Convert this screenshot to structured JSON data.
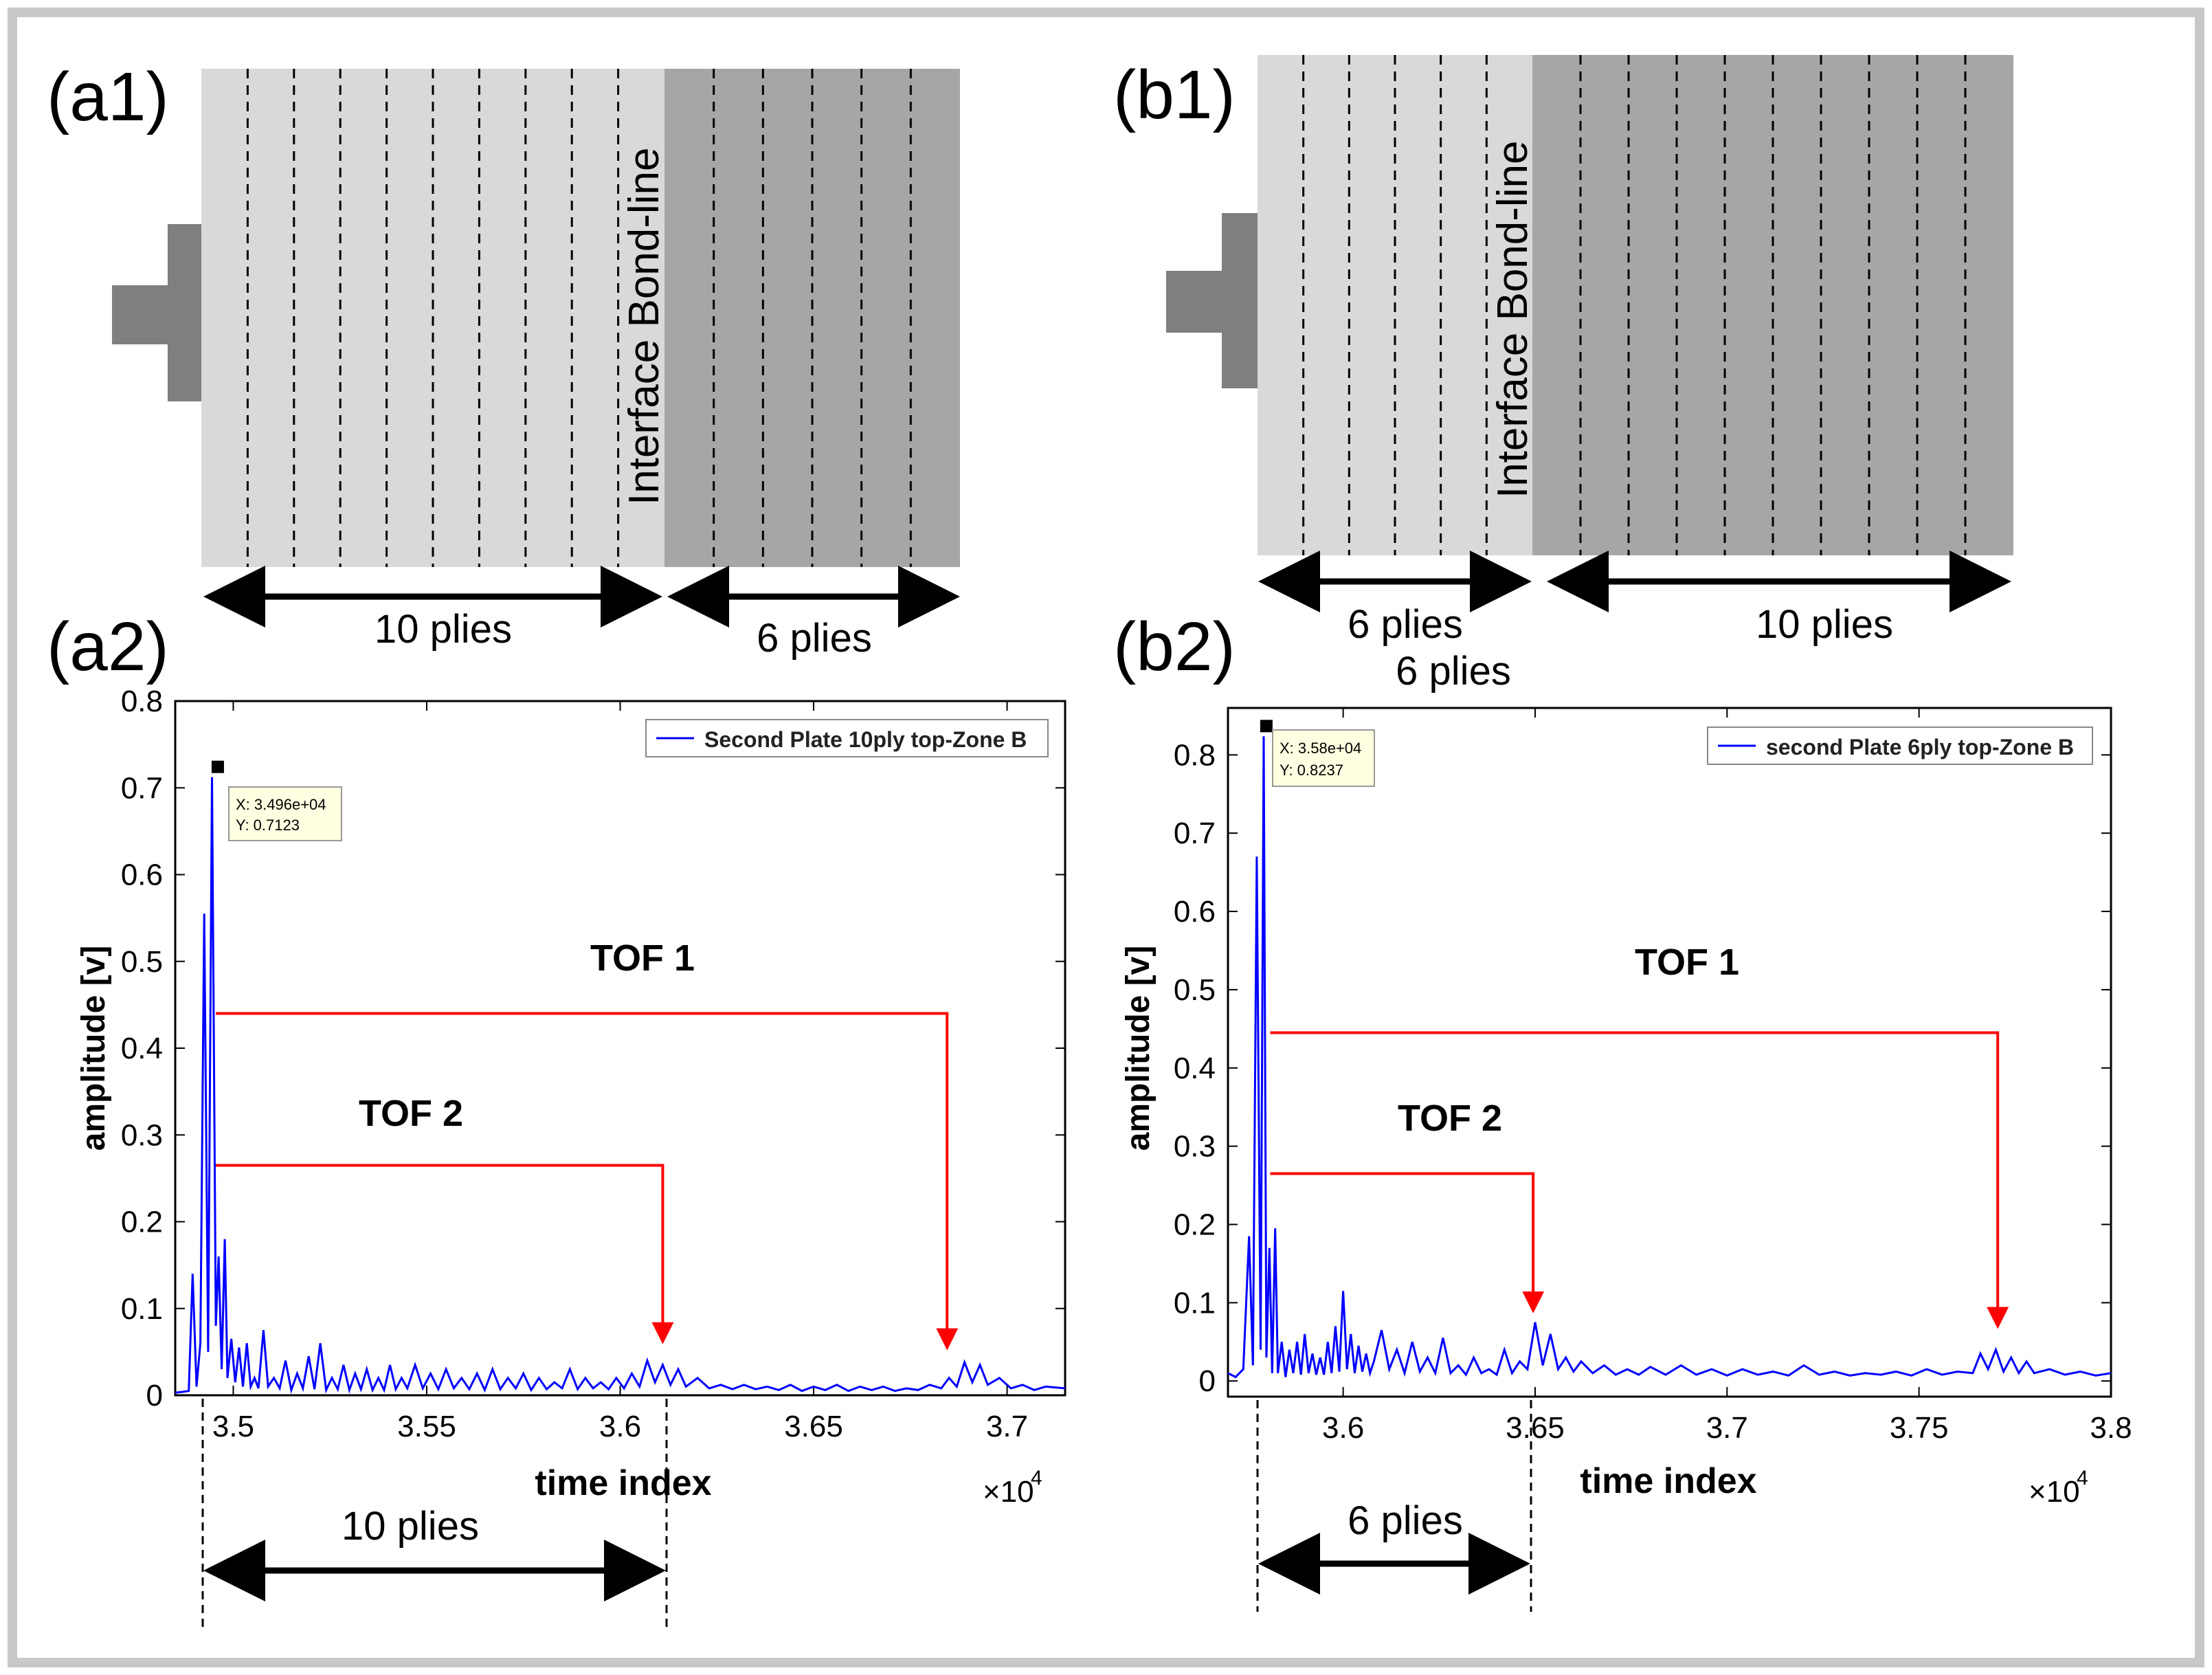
{
  "colors": {
    "frame": "#c8c8c8",
    "light_ply": "#d9d9d9",
    "dark_ply": "#a6a6a6",
    "transducer": "#7f7f7f",
    "signal": "#0000ff",
    "arrow_red": "#ff0000",
    "datatip_bg": "#ffffe1"
  },
  "panels": {
    "a1": {
      "label": "(a1)",
      "bond_line_label": "Interface Bond-line",
      "left_span_label": "10 plies",
      "right_span_label": "6 plies",
      "left_plies": 10,
      "right_plies": 6
    },
    "b1": {
      "label": "(b1)",
      "bond_line_label": "Interface Bond-line",
      "left_span_label": "6 plies",
      "left_span_label_2": "6 plies",
      "right_span_label": "10 plies",
      "left_plies": 6,
      "right_plies": 10
    },
    "a2": {
      "label": "(a2)",
      "bottom_span_label": "10 plies",
      "tof1_label": "TOF 1",
      "tof2_label": "TOF 2",
      "datatip_x": "X: 3.496e+04",
      "datatip_y": "Y: 0.7123",
      "exponent_label": "×10",
      "exponent_power": "4"
    },
    "b2": {
      "label": "(b2)",
      "bottom_span_label": "6 plies",
      "tof1_label": "TOF 1",
      "tof2_label": "TOF 2",
      "datatip_x": "X: 3.58e+04",
      "datatip_y": "Y: 0.8237",
      "exponent_label": "×10",
      "exponent_power": "4"
    }
  },
  "chart_data": [
    {
      "id": "a2",
      "type": "line",
      "title": "",
      "xlabel": "time index",
      "ylabel": "amplitude [v]",
      "xlim": [
        3.485,
        3.715
      ],
      "ylim": [
        0,
        0.8
      ],
      "x_scale_note": "×10^4",
      "xticks": [
        3.5,
        3.55,
        3.6,
        3.65,
        3.7
      ],
      "xtick_labels": [
        "3.5",
        "3.55",
        "3.6",
        "3.65",
        "3.7"
      ],
      "yticks": [
        0,
        0.1,
        0.2,
        0.3,
        0.4,
        0.5,
        0.6,
        0.7,
        0.8
      ],
      "ytick_labels": [
        "0",
        "0.1",
        "0.2",
        "0.3",
        "0.4",
        "0.5",
        "0.6",
        "0.7",
        "0.8"
      ],
      "legend": "Second Plate 10ply  top-Zone B",
      "legend_position": "top-right",
      "datatip": {
        "x": 3.496,
        "y": 0.7123
      },
      "series": [
        {
          "name": "Second Plate 10ply  top-Zone B",
          "x": [
            3.485,
            3.487,
            3.4885,
            3.4895,
            3.4905,
            3.4915,
            3.4925,
            3.4935,
            3.4945,
            3.4955,
            3.4962,
            3.497,
            3.4978,
            3.4985,
            3.4995,
            3.5005,
            3.5015,
            3.5025,
            3.5035,
            3.5045,
            3.5055,
            3.5065,
            3.5078,
            3.509,
            3.5105,
            3.512,
            3.5135,
            3.515,
            3.5165,
            3.518,
            3.5195,
            3.521,
            3.5225,
            3.524,
            3.5255,
            3.527,
            3.5285,
            3.53,
            3.5315,
            3.533,
            3.5345,
            3.536,
            3.5375,
            3.539,
            3.5405,
            3.542,
            3.5435,
            3.545,
            3.547,
            3.549,
            3.551,
            3.553,
            3.555,
            3.557,
            3.559,
            3.561,
            3.563,
            3.565,
            3.567,
            3.569,
            3.571,
            3.573,
            3.575,
            3.577,
            3.579,
            3.581,
            3.583,
            3.585,
            3.587,
            3.589,
            3.591,
            3.593,
            3.595,
            3.597,
            3.599,
            3.601,
            3.603,
            3.605,
            3.607,
            3.609,
            3.611,
            3.613,
            3.615,
            3.617,
            3.62,
            3.623,
            3.626,
            3.629,
            3.632,
            3.635,
            3.638,
            3.641,
            3.644,
            3.647,
            3.65,
            3.653,
            3.656,
            3.659,
            3.662,
            3.665,
            3.668,
            3.671,
            3.674,
            3.677,
            3.68,
            3.683,
            3.685,
            3.687,
            3.689,
            3.691,
            3.693,
            3.695,
            3.698,
            3.701,
            3.704,
            3.707,
            3.71,
            3.715
          ],
          "y": [
            0.003,
            0.004,
            0.005,
            0.14,
            0.01,
            0.06,
            0.555,
            0.05,
            0.7123,
            0.08,
            0.16,
            0.03,
            0.18,
            0.02,
            0.065,
            0.015,
            0.055,
            0.01,
            0.06,
            0.01,
            0.02,
            0.008,
            0.075,
            0.01,
            0.02,
            0.008,
            0.04,
            0.006,
            0.025,
            0.008,
            0.045,
            0.007,
            0.06,
            0.006,
            0.02,
            0.007,
            0.035,
            0.006,
            0.025,
            0.007,
            0.03,
            0.006,
            0.02,
            0.006,
            0.035,
            0.007,
            0.02,
            0.008,
            0.035,
            0.008,
            0.025,
            0.007,
            0.03,
            0.008,
            0.02,
            0.007,
            0.025,
            0.006,
            0.03,
            0.007,
            0.02,
            0.008,
            0.025,
            0.006,
            0.02,
            0.007,
            0.015,
            0.008,
            0.03,
            0.007,
            0.02,
            0.008,
            0.015,
            0.007,
            0.02,
            0.008,
            0.025,
            0.01,
            0.04,
            0.015,
            0.035,
            0.012,
            0.03,
            0.01,
            0.02,
            0.008,
            0.012,
            0.007,
            0.012,
            0.007,
            0.01,
            0.006,
            0.012,
            0.005,
            0.01,
            0.006,
            0.012,
            0.005,
            0.01,
            0.006,
            0.01,
            0.005,
            0.008,
            0.006,
            0.012,
            0.008,
            0.02,
            0.01,
            0.038,
            0.015,
            0.035,
            0.012,
            0.02,
            0.008,
            0.012,
            0.006,
            0.01,
            0.008
          ]
        }
      ],
      "annotations": [
        {
          "label": "TOF 1",
          "from_y": 0.44,
          "from_x": 3.4955,
          "to_x": 3.6845,
          "to_y": 0.055
        },
        {
          "label": "TOF 2",
          "from_y": 0.265,
          "from_x": 3.4955,
          "to_x": 3.611,
          "to_y": 0.062
        }
      ]
    },
    {
      "id": "b2",
      "type": "line",
      "title": "",
      "xlabel": "time index",
      "ylabel": "amplitude [v]",
      "xlim": [
        3.57,
        3.8
      ],
      "ylim": [
        -0.02,
        0.86
      ],
      "x_scale_note": "×10^4",
      "xticks": [
        3.6,
        3.65,
        3.7,
        3.75,
        3.8
      ],
      "xtick_labels": [
        "3.6",
        "3.65",
        "3.7",
        "3.75",
        "3.8"
      ],
      "yticks": [
        0,
        0.1,
        0.2,
        0.3,
        0.4,
        0.5,
        0.6,
        0.7,
        0.8
      ],
      "ytick_labels": [
        "0",
        "0.1",
        "0.2",
        "0.3",
        "0.4",
        "0.5",
        "0.6",
        "0.7",
        "0.8"
      ],
      "legend": "second Plate 6ply  top-Zone B",
      "legend_position": "top-right",
      "datatip": {
        "x": 3.58,
        "y": 0.8237
      },
      "series": [
        {
          "name": "second Plate 6ply  top-Zone B",
          "x": [
            3.57,
            3.572,
            3.574,
            3.5755,
            3.5765,
            3.5775,
            3.5785,
            3.5793,
            3.58,
            3.5808,
            3.5815,
            3.5823,
            3.583,
            3.584,
            3.585,
            3.586,
            3.587,
            3.588,
            3.589,
            3.59,
            3.591,
            3.592,
            3.593,
            3.594,
            3.595,
            3.596,
            3.597,
            3.598,
            3.599,
            3.6,
            3.601,
            3.602,
            3.603,
            3.604,
            3.605,
            3.606,
            3.607,
            3.608,
            3.61,
            3.612,
            3.614,
            3.616,
            3.618,
            3.62,
            3.622,
            3.624,
            3.626,
            3.628,
            3.63,
            3.632,
            3.634,
            3.636,
            3.638,
            3.64,
            3.642,
            3.644,
            3.646,
            3.648,
            3.65,
            3.652,
            3.654,
            3.656,
            3.658,
            3.66,
            3.662,
            3.665,
            3.668,
            3.671,
            3.674,
            3.677,
            3.68,
            3.684,
            3.688,
            3.692,
            3.696,
            3.7,
            3.704,
            3.708,
            3.712,
            3.716,
            3.72,
            3.724,
            3.728,
            3.732,
            3.736,
            3.74,
            3.744,
            3.748,
            3.752,
            3.756,
            3.76,
            3.764,
            3.766,
            3.768,
            3.77,
            3.772,
            3.774,
            3.776,
            3.778,
            3.78,
            3.784,
            3.788,
            3.792,
            3.796,
            3.8
          ],
          "y": [
            0.01,
            0.005,
            0.015,
            0.185,
            0.02,
            0.67,
            0.04,
            0.8237,
            0.03,
            0.17,
            0.01,
            0.195,
            0.01,
            0.05,
            0.005,
            0.04,
            0.01,
            0.05,
            0.008,
            0.06,
            0.01,
            0.035,
            0.008,
            0.03,
            0.008,
            0.05,
            0.01,
            0.07,
            0.012,
            0.115,
            0.015,
            0.06,
            0.01,
            0.045,
            0.012,
            0.035,
            0.01,
            0.025,
            0.065,
            0.015,
            0.04,
            0.01,
            0.05,
            0.012,
            0.03,
            0.01,
            0.055,
            0.01,
            0.02,
            0.008,
            0.03,
            0.01,
            0.015,
            0.008,
            0.04,
            0.01,
            0.025,
            0.015,
            0.075,
            0.02,
            0.06,
            0.015,
            0.03,
            0.012,
            0.025,
            0.01,
            0.02,
            0.008,
            0.015,
            0.008,
            0.018,
            0.008,
            0.02,
            0.008,
            0.015,
            0.007,
            0.015,
            0.008,
            0.012,
            0.007,
            0.02,
            0.008,
            0.012,
            0.007,
            0.01,
            0.008,
            0.012,
            0.007,
            0.015,
            0.008,
            0.012,
            0.01,
            0.035,
            0.015,
            0.04,
            0.012,
            0.03,
            0.01,
            0.025,
            0.01,
            0.015,
            0.008,
            0.012,
            0.007,
            0.01
          ]
        }
      ],
      "annotations": [
        {
          "label": "TOF 1",
          "from_y": 0.445,
          "from_x": 3.581,
          "to_x": 3.7705,
          "to_y": 0.07
        },
        {
          "label": "TOF 2",
          "from_y": 0.265,
          "from_x": 3.581,
          "to_x": 3.6495,
          "to_y": 0.09
        }
      ]
    }
  ]
}
